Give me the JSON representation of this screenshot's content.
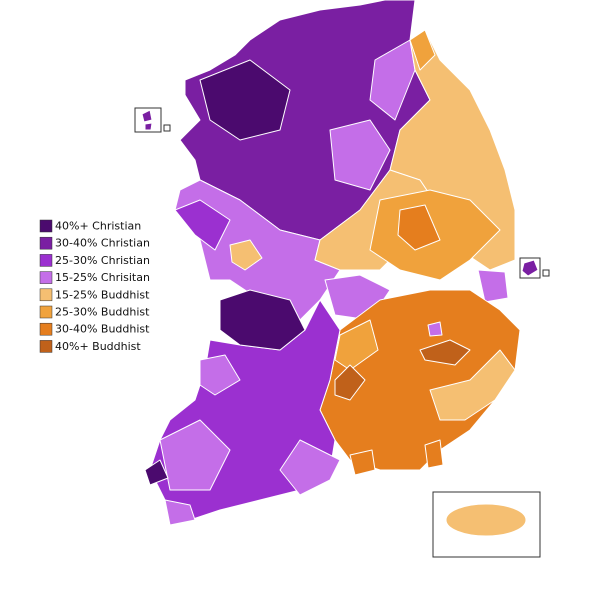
{
  "legend": {
    "items": [
      {
        "label": "40%+ Christian",
        "color": "#4b0a6e"
      },
      {
        "label": "30-40% Christian",
        "color": "#7a1fa2"
      },
      {
        "label": "25-30% Christian",
        "color": "#9b30d0"
      },
      {
        "label": "15-25% Chrisitan",
        "color": "#c46ee8"
      },
      {
        "label": "15-25% Buddhist",
        "color": "#f5bf72"
      },
      {
        "label": "25-30% Buddhist",
        "color": "#f0a23c"
      },
      {
        "label": "30-40% Buddhist",
        "color": "#e57e1e"
      },
      {
        "label": "40%+ Buddhist",
        "color": "#c0611a"
      }
    ]
  }
}
